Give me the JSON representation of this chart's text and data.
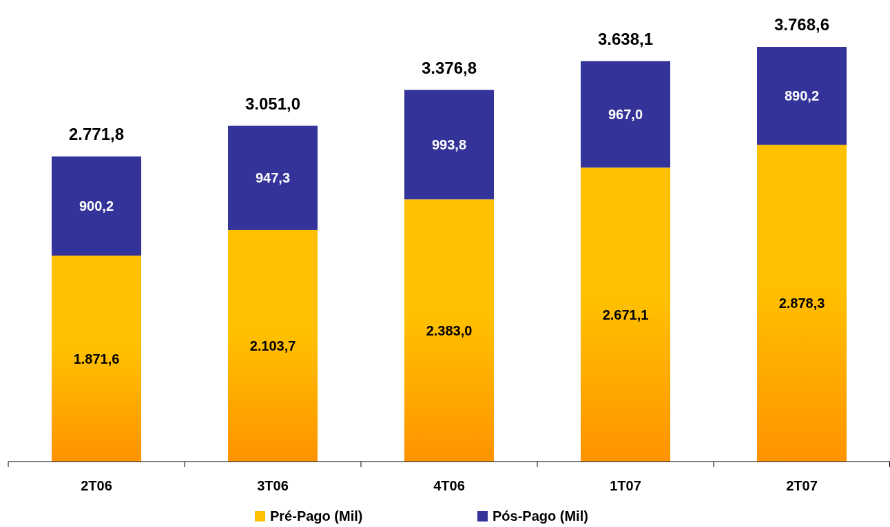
{
  "chart_data": {
    "type": "bar",
    "stacked": true,
    "categories": [
      "2T06",
      "3T06",
      "4T06",
      "1T07",
      "2T07"
    ],
    "series": [
      {
        "name": "Pré-Pago (Mil)",
        "color": "#ffc000",
        "values": [
          1871.6,
          2103.7,
          2383.0,
          2671.1,
          2878.3
        ],
        "value_labels": [
          "1.871,6",
          "2.103,7",
          "2.383,0",
          "2.671,1",
          "2.878,3"
        ]
      },
      {
        "name": "Pós-Pago (Mil)",
        "color": "#333399",
        "values": [
          900.2,
          947.3,
          993.8,
          967.0,
          890.2
        ],
        "value_labels": [
          "900,2",
          "947,3",
          "993,8",
          "967,0",
          "890,2"
        ]
      }
    ],
    "totals": [
      "2.771,8",
      "3.051,0",
      "3.376,8",
      "3.638,1",
      "3.768,6"
    ],
    "legend": "bottom"
  }
}
